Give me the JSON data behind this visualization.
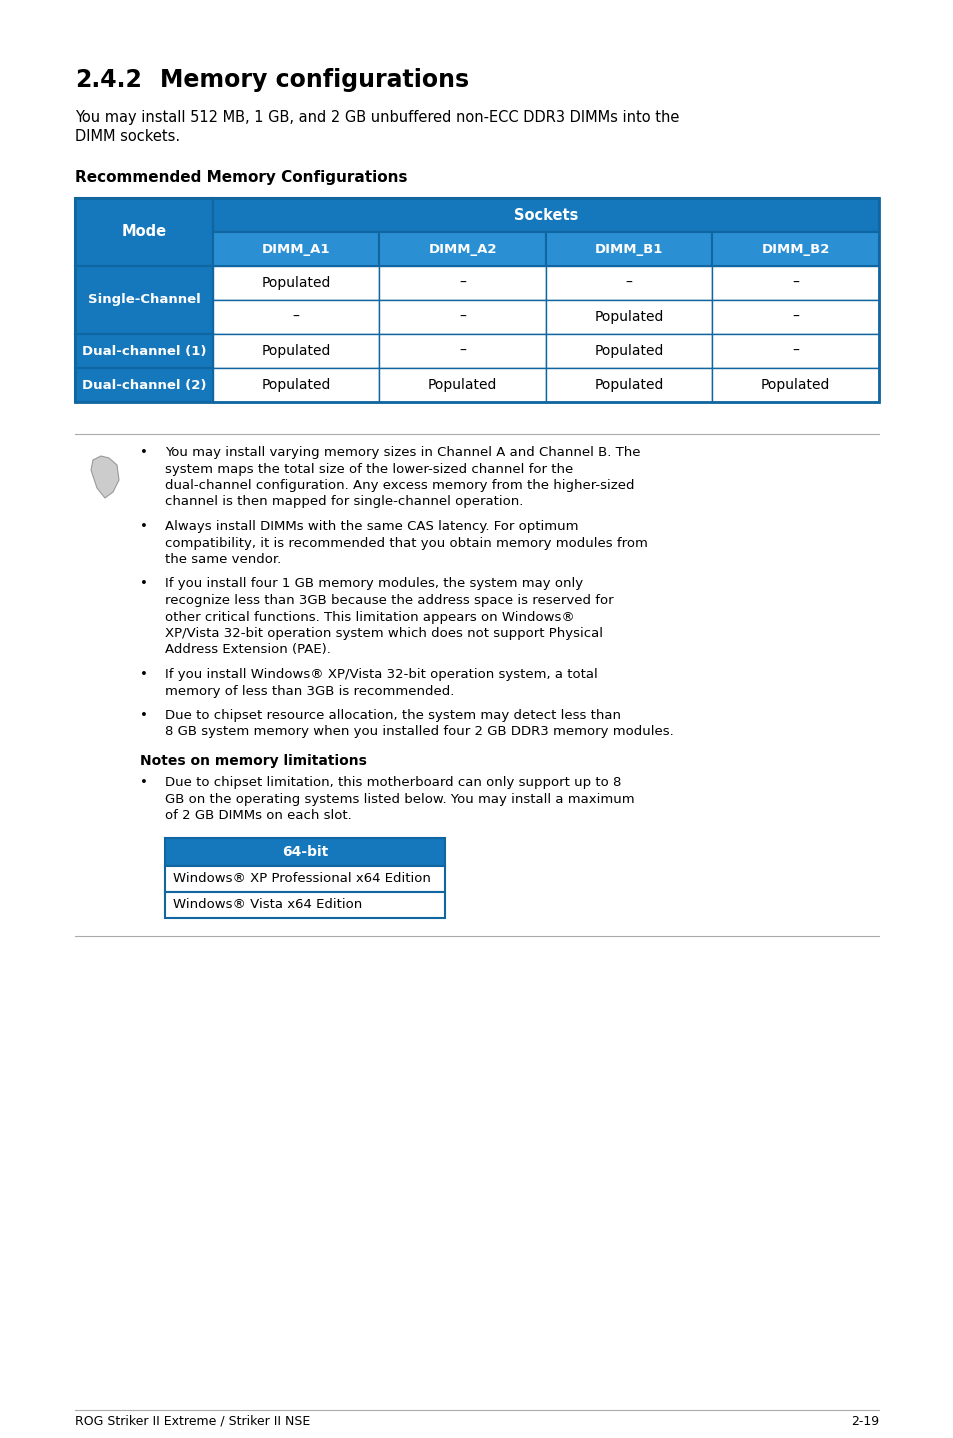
{
  "dark_blue": "#1577bc",
  "medium_blue": "#2b8fd4",
  "white": "#ffffff",
  "black": "#000000",
  "border_blue": "#1066a0",
  "light_gray": "#aaaaaa",
  "footer_left": "ROG Striker II Extreme / Striker II NSE",
  "footer_right": "2-19",
  "title_num": "2.4.2",
  "title_text": "Memory configurations",
  "intro": "You may install 512 MB, 1 GB, and 2 GB unbuffered non-ECC DDR3 DIMMs into the DIMM sockets.",
  "table_heading": "Recommended Memory Configurations",
  "col_headers": [
    "DIMM_A1",
    "DIMM_A2",
    "DIMM_B1",
    "DIMM_B2"
  ],
  "table_data": [
    [
      "Single-Channel",
      "Populated",
      "–",
      "–",
      "–"
    ],
    [
      "Single-Channel",
      "–",
      "–",
      "Populated",
      "–"
    ],
    [
      "Dual-channel (1)",
      "Populated",
      "–",
      "Populated",
      "–"
    ],
    [
      "Dual-channel (2)",
      "Populated",
      "Populated",
      "Populated",
      "Populated"
    ]
  ],
  "merged_modes": [
    "Single-Channel"
  ],
  "bullets": [
    "You may install varying memory sizes in Channel A and Channel B. The system maps the total size of the lower-sized channel for the dual-channel configuration. Any excess memory from the higher-sized channel is then mapped for single-channel operation.",
    "Always install DIMMs with the same CAS latency. For optimum compatibility, it is recommended that you obtain memory modules from the same vendor.",
    "If you install four 1 GB memory modules, the system may only recognize less than 3GB because the address space is reserved for other critical functions. This limitation appears on Windows® XP/Vista 32-bit operation system which does not support Physical Address Extension (PAE).",
    "If you install Windows® XP/Vista 32-bit operation system, a total memory of less than 3GB is recommended.",
    "Due to chipset resource allocation, the system may detect less than 8 GB system memory when you installed four 2 GB DDR3 memory modules."
  ],
  "notes_title": "Notes on memory limitations",
  "notes_bullet": "Due to chipset limitation, this motherboard can only support up to 8 GB on the operating systems listed below. You may install a maximum of 2 GB DIMMs on each slot.",
  "bit64_header": "64-bit",
  "bit64_rows": [
    "Windows® XP Professional x64 Edition",
    "Windows® Vista x64 Edition"
  ]
}
